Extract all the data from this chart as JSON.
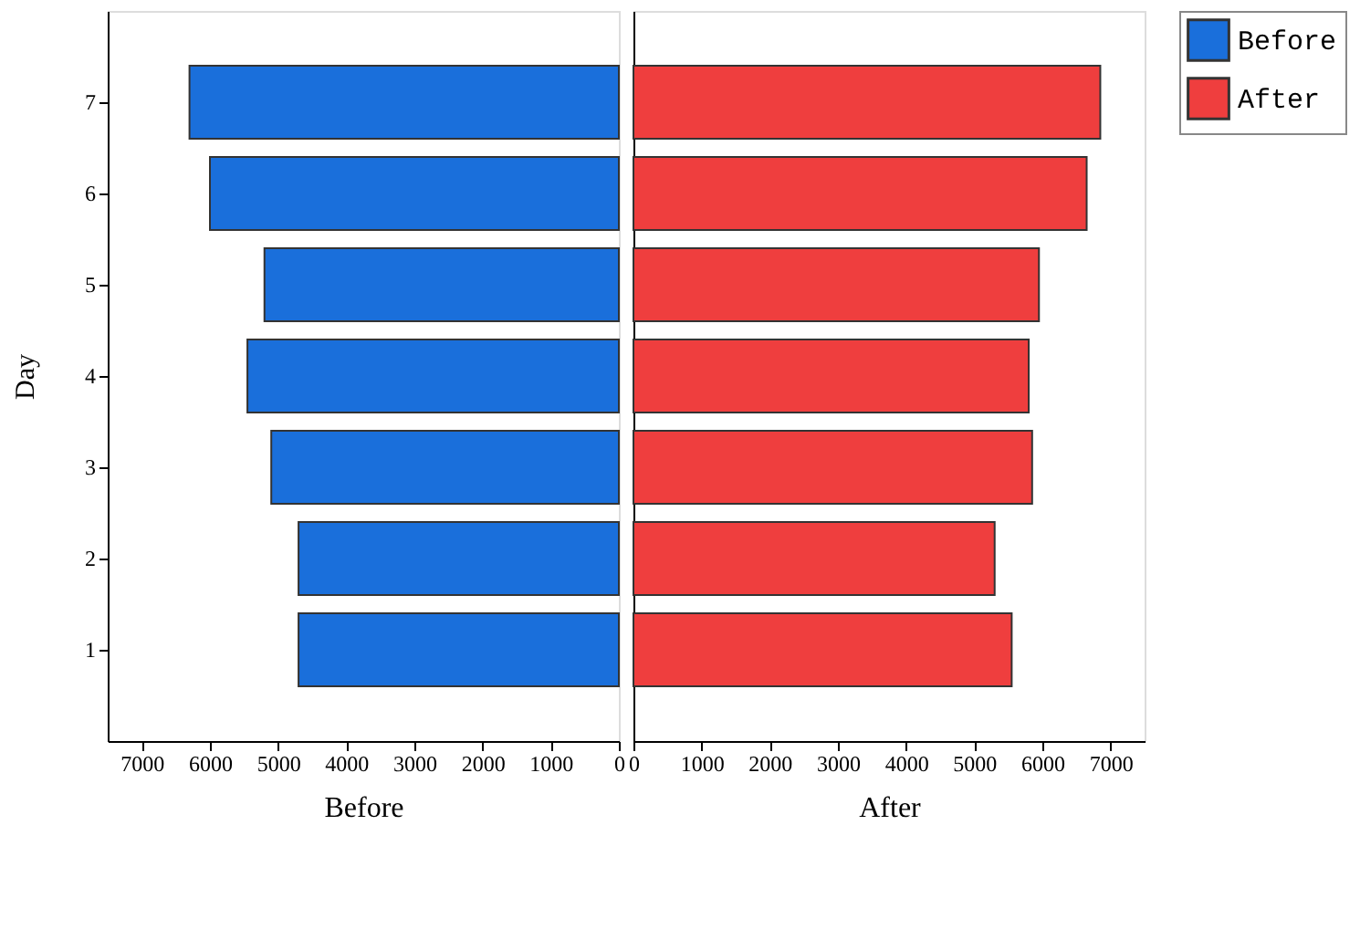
{
  "chart_data": [
    {
      "type": "bar",
      "orientation": "horizontal",
      "categories": [
        "7",
        "6",
        "5",
        "4",
        "3",
        "2",
        "1"
      ],
      "ylabel": "Day",
      "xlabel": "Before",
      "xlim": [
        7500,
        0
      ],
      "xticks": [
        7000,
        6000,
        5000,
        4000,
        3000,
        2000,
        1000,
        0
      ],
      "legend": "top right",
      "series": [
        {
          "name": "Before",
          "color": "#1a6fdb",
          "values": [
            6300,
            6000,
            5200,
            5450,
            5100,
            4700,
            4700
          ]
        }
      ]
    },
    {
      "type": "bar",
      "orientation": "horizontal",
      "categories": [
        "7",
        "6",
        "5",
        "4",
        "3",
        "2",
        "1"
      ],
      "xlabel": "After",
      "xlim": [
        0,
        7500
      ],
      "xticks": [
        0,
        1000,
        2000,
        3000,
        4000,
        5000,
        6000,
        7000
      ],
      "legend": "top right",
      "tick_labels": "x",
      "series": [
        {
          "name": "After",
          "color": "#ef3e3e",
          "values": [
            6850,
            6650,
            5950,
            5800,
            5850,
            5300,
            5550
          ]
        }
      ]
    }
  ]
}
